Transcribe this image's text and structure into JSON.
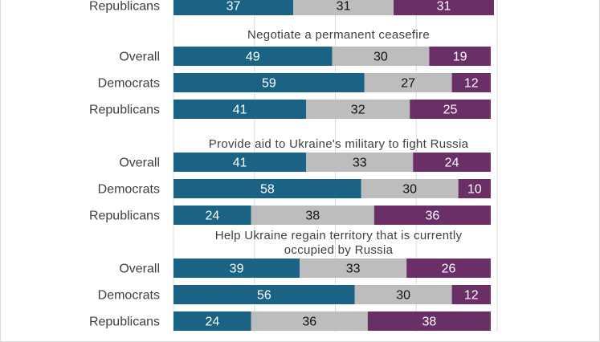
{
  "colors": {
    "support": "#1b6384",
    "neutral": "#bdbdbd",
    "oppose": "#6a2f66",
    "grid": "#d9d9d9"
  },
  "chart_data": {
    "type": "bar",
    "orientation": "horizontal",
    "stacked": true,
    "xlim": [
      0,
      100
    ],
    "grid": true,
    "groups": [
      {
        "title": "",
        "rows": [
          {
            "label": "Republicans",
            "values": [
              37,
              31,
              31
            ]
          }
        ]
      },
      {
        "title": "Negotiate a permanent ceasefire",
        "rows": [
          {
            "label": "Overall",
            "values": [
              49,
              30,
              19
            ]
          },
          {
            "label": "Democrats",
            "values": [
              59,
              27,
              12
            ]
          },
          {
            "label": "Republicans",
            "values": [
              41,
              32,
              25
            ]
          }
        ]
      },
      {
        "title": "Provide aid to Ukraine's military to fight Russia",
        "rows": [
          {
            "label": "Overall",
            "values": [
              41,
              33,
              24
            ]
          },
          {
            "label": "Democrats",
            "values": [
              58,
              30,
              10
            ]
          },
          {
            "label": "Republicans",
            "values": [
              24,
              38,
              36
            ]
          }
        ]
      },
      {
        "title": [
          "Help Ukraine regain territory that is currently",
          "occupied by Russia"
        ],
        "rows": [
          {
            "label": "Overall",
            "values": [
              39,
              33,
              26
            ]
          },
          {
            "label": "Democrats",
            "values": [
              56,
              30,
              12
            ]
          },
          {
            "label": "Republicans",
            "values": [
              24,
              36,
              38
            ]
          }
        ]
      }
    ]
  }
}
